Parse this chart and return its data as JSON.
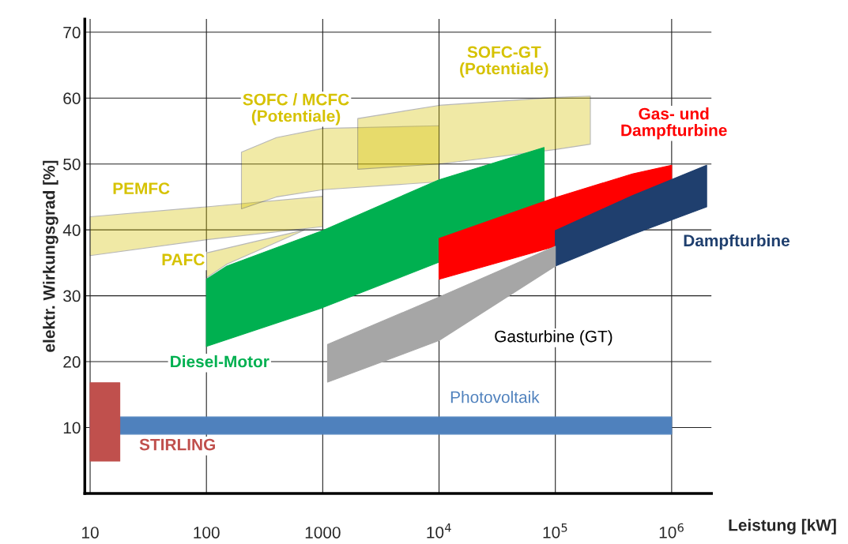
{
  "chart_data": {
    "type": "area",
    "xlabel": "Leistung [kW]",
    "ylabel": "elektr. Wirkungsgrad [%]",
    "log": "x",
    "grid": true,
    "legend": false,
    "xlim": [
      9,
      2200000
    ],
    "ylim": [
      0,
      72
    ],
    "xticks": [
      10,
      100,
      1000,
      {
        "value": 10000,
        "label": "10$^{4}$"
      },
      {
        "value": 100000,
        "label": "10$^{5}$"
      },
      {
        "value": 1000000,
        "label": "10$^{6}$"
      }
    ],
    "yticks": [
      10,
      20,
      30,
      40,
      50,
      60,
      70
    ],
    "series": [
      {
        "name": "PEMFC",
        "color": "#d6c200",
        "x": [
          10,
          100,
          1000,
          1000,
          100,
          10
        ],
        "values": [
          42.0,
          43.5,
          45.1,
          40.5,
          38.5,
          36.1
        ]
      },
      {
        "name": "PAFC",
        "color": "#d6c200",
        "x": [
          100,
          700,
          150,
          100
        ],
        "values": [
          36.5,
          40.0,
          34.8,
          32.7
        ]
      },
      {
        "name": "SOFC / MCFC\n(Potentiale)",
        "color": "#d6c200",
        "x": [
          200,
          400,
          1000,
          10000,
          10000,
          1000,
          400,
          200
        ],
        "values": [
          51.8,
          54.0,
          55.4,
          55.8,
          47.3,
          46.1,
          45.0,
          43.2
        ]
      },
      {
        "name": "SOFC-GT\n(Potentiale)",
        "color": "#d6c200",
        "x": [
          2000,
          10000,
          100000,
          200000,
          200000,
          100000,
          10000,
          2000
        ],
        "values": [
          56.9,
          58.9,
          60.1,
          60.3,
          53.0,
          52.2,
          50.0,
          49.2
        ]
      },
      {
        "name": "Diesel-Motor",
        "color": "#00b050",
        "x": [
          100,
          150,
          1000,
          10000,
          80000,
          80000,
          10000,
          10000,
          1000,
          100
        ],
        "values": [
          32.5,
          34.5,
          39.9,
          47.6,
          52.5,
          44.0,
          38.7,
          35.1,
          28.2,
          22.3
        ]
      },
      {
        "name": "Gas- und\nDampfturbine",
        "color": "#ff0000",
        "x": [
          10000,
          100000,
          460000,
          1000000,
          1000000,
          460000,
          100000,
          100000,
          10000
        ],
        "values": [
          38.7,
          44.9,
          48.5,
          49.8,
          47.6,
          45.2,
          39.9,
          37.5,
          32.5
        ]
      },
      {
        "name": "Dampfturbine",
        "color": "#1f3f6e",
        "x": [
          100000,
          460000,
          2000000,
          2000000,
          460000,
          100000
        ],
        "values": [
          39.9,
          45.2,
          49.8,
          43.5,
          39.3,
          34.5
        ]
      },
      {
        "name": "Gasturbine (GT)",
        "color": "#a6a6a6",
        "x": [
          1100,
          10000,
          100000,
          100000,
          10000,
          1100
        ],
        "values": [
          22.6,
          29.8,
          37.5,
          34.5,
          23.2,
          16.9
        ]
      },
      {
        "name": "Photovoltaik",
        "color": "#4f81bd",
        "x": [
          10,
          1000000,
          1000000,
          10
        ],
        "values": [
          11.6,
          11.6,
          9.0,
          9.0
        ]
      },
      {
        "name": "STIRLING",
        "color": "#c0504d",
        "x": [
          10,
          18,
          18,
          10
        ],
        "values": [
          16.8,
          16.8,
          4.9,
          4.9
        ]
      }
    ]
  }
}
